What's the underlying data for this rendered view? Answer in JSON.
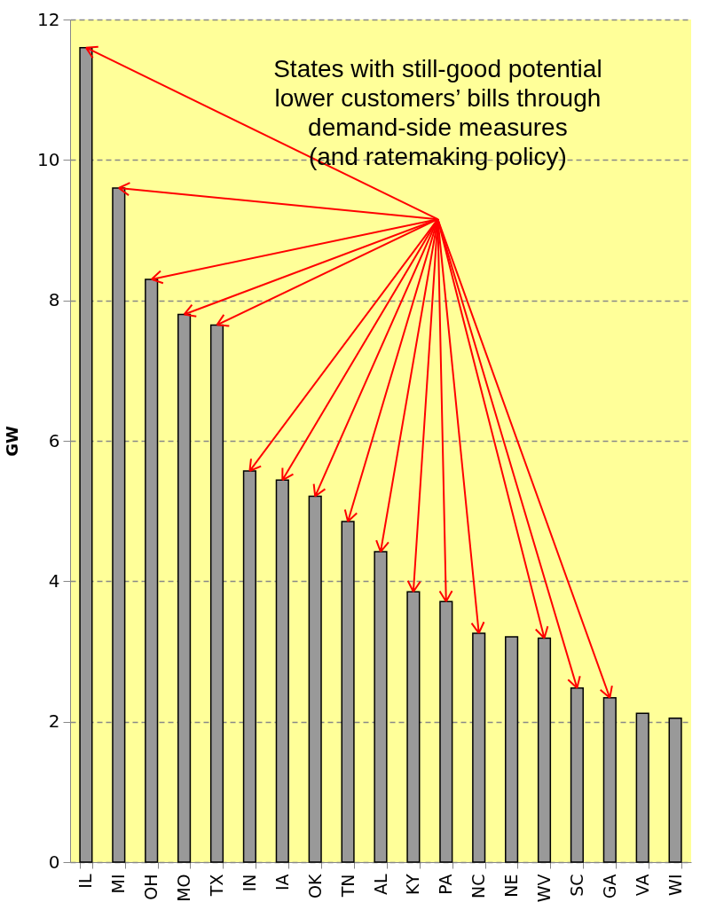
{
  "chart_data": {
    "type": "bar",
    "ylabel": "GW",
    "categories": [
      "IL",
      "MI",
      "OH",
      "MO",
      "TX",
      "IN",
      "IA",
      "OK",
      "TN",
      "AL",
      "KY",
      "PA",
      "NC",
      "NE",
      "WV",
      "SC",
      "GA",
      "VA",
      "WI"
    ],
    "values": [
      11.6,
      9.6,
      8.3,
      7.8,
      7.65,
      5.57,
      5.44,
      5.21,
      4.85,
      4.42,
      3.85,
      3.71,
      3.26,
      3.21,
      3.19,
      2.48,
      2.34,
      2.12,
      2.05
    ],
    "color": "#999999",
    "ylim": [
      0,
      12
    ],
    "yticks": [
      0,
      2,
      4,
      6,
      8,
      10,
      12
    ],
    "grid": "y",
    "annotations": [
      "States with still-good potential\nlower customers’ bills through\ndemand-side measures\n(and ratemaking policy)"
    ]
  }
}
